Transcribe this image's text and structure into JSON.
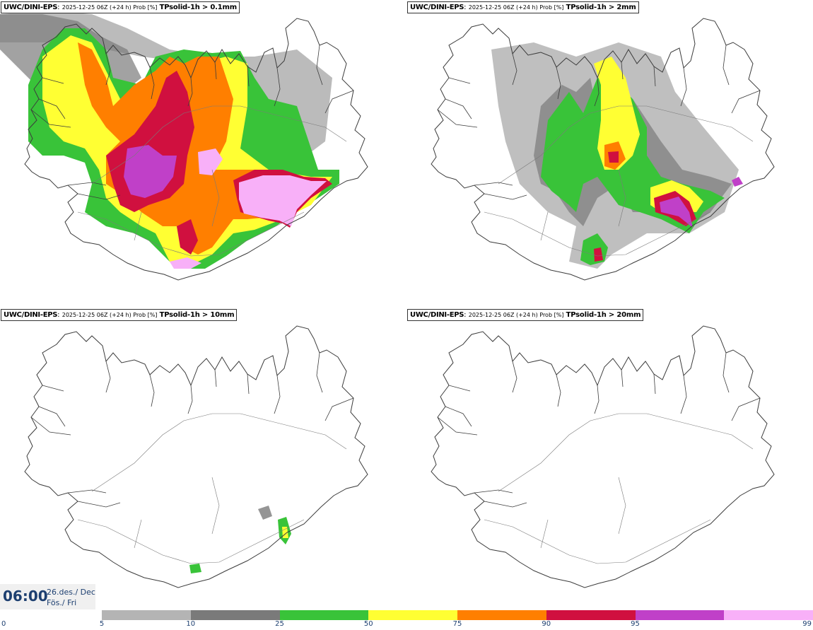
{
  "panels": [
    {
      "model": "UWC/DINI-EPS",
      "meta": "2025-12-25 06Z (+24 h) Prob [%]",
      "var": "TPsolid-1h > 0.1mm"
    },
    {
      "model": "UWC/DINI-EPS",
      "meta": "2025-12-25 06Z (+24 h) Prob [%]",
      "var": "TPsolid-1h > 2mm"
    },
    {
      "model": "UWC/DINI-EPS",
      "meta": "2025-12-25 06Z (+24 h) Prob [%]",
      "var": "TPsolid-1h > 10mm"
    },
    {
      "model": "UWC/DINI-EPS",
      "meta": "2025-12-25 06Z (+24 h) Prob [%]",
      "var": "TPsolid-1h > 20mm"
    }
  ],
  "time": {
    "clock": "06:00",
    "date_line1": "26.des./ Dec",
    "date_line2": "Fös./ Fri"
  },
  "legend": {
    "ticks": [
      "0",
      "5",
      "10",
      "25",
      "50",
      "75",
      "90",
      "95",
      "99"
    ],
    "colors": [
      "#b4b4b4",
      "#7a7a7a",
      "#39c339",
      "#ffff33",
      "#ff7f00",
      "#d0103f",
      "#c040c8",
      "#f8b0f8"
    ]
  },
  "colors": {
    "coast": "#3c3c3c",
    "text_blue": "#1d3f70"
  }
}
